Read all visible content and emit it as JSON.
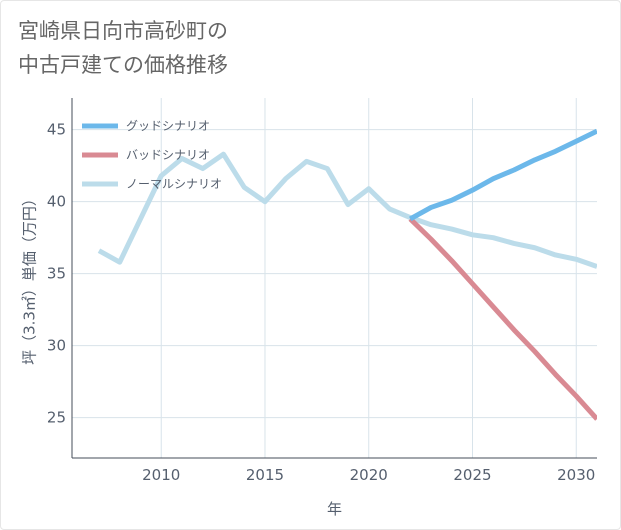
{
  "title_lines": [
    "宮崎県日向市高砂町の",
    "中古戸建ての価格推移"
  ],
  "colors": {
    "good": "#6cb8ea",
    "bad": "#d98a93",
    "normal": "#bcdcea",
    "grid": "#d8e3ea",
    "text": "#555f6e"
  },
  "chart_data": {
    "type": "line",
    "xlabel": "年",
    "ylabel": "坪（3.3㎡）単価（万円）",
    "xlim": [
      2005.7,
      2031.0
    ],
    "ylim": [
      22.2,
      47.2
    ],
    "x_ticks": [
      2010,
      2015,
      2020,
      2025,
      2030
    ],
    "y_ticks": [
      25,
      30,
      35,
      40,
      45
    ],
    "legend_position": "top-left",
    "series": [
      {
        "key": "good",
        "name": "グッドシナリオ",
        "x": [
          2022,
          2023,
          2024,
          2025,
          2026,
          2027,
          2028,
          2029,
          2030,
          2031
        ],
        "y": [
          38.8,
          39.6,
          40.1,
          40.8,
          41.6,
          42.2,
          42.9,
          43.5,
          44.2,
          44.9
        ]
      },
      {
        "key": "bad",
        "name": "バッドシナリオ",
        "x": [
          2022,
          2023,
          2024,
          2025,
          2026,
          2027,
          2028,
          2029,
          2030,
          2031
        ],
        "y": [
          38.8,
          37.4,
          35.9,
          34.3,
          32.7,
          31.1,
          29.6,
          28.0,
          26.5,
          24.9
        ]
      },
      {
        "key": "normal",
        "name": "ノーマルシナリオ",
        "x": [
          2007,
          2008,
          2009,
          2010,
          2011,
          2012,
          2013,
          2014,
          2015,
          2016,
          2017,
          2018,
          2019,
          2020,
          2021,
          2022,
          2023,
          2024,
          2025,
          2026,
          2027,
          2028,
          2029,
          2030,
          2031
        ],
        "y": [
          36.6,
          35.8,
          38.8,
          41.8,
          43.0,
          42.3,
          43.3,
          41.0,
          40.0,
          41.6,
          42.8,
          42.3,
          39.8,
          40.9,
          39.5,
          38.9,
          38.4,
          38.1,
          37.7,
          37.5,
          37.1,
          36.8,
          36.3,
          36.0,
          35.5
        ]
      }
    ]
  }
}
